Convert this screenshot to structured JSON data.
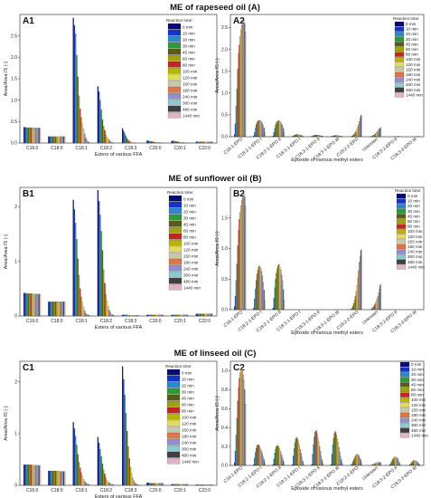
{
  "figure": {
    "section_titles": [
      "ME of rapeseed oil (A)",
      "ME of sunflower oil (B)",
      "ME of linseed oil (C)"
    ]
  },
  "legend": {
    "title": "Reaction time:",
    "colors": [
      "#0a0a73",
      "#1434c8",
      "#2f88c9",
      "#2f9a3a",
      "#5a5a1a",
      "#a0a014",
      "#c0281e",
      "#b8b400",
      "#e0dc60",
      "#c8c8aa",
      "#d9784a",
      "#9090c8",
      "#90c8d0",
      "#404040",
      "#e0b4c8",
      "#7830a8",
      "#c8a0ff",
      "#f0c8f0"
    ]
  },
  "chart_data": [
    {
      "id": "A1",
      "type": "bar",
      "panel_label": "A1",
      "xlabel": "Esters of various FFA",
      "ylabel": "Area/Area IS (-)",
      "ylim": [
        0,
        3.0
      ],
      "yticks": [
        0.0,
        0.5,
        1.0,
        1.5,
        2.0,
        2.5
      ],
      "categories": [
        "C16:0",
        "C18:0",
        "C18:1",
        "C18:2",
        "C18:3",
        "C20:0",
        "C20:1",
        "C22:0"
      ],
      "series_names": [
        "0 min",
        "10 min",
        "20 min",
        "30 min",
        "45 min",
        "60 min",
        "80 min",
        "100 min",
        "120 min",
        "150 min",
        "180 min",
        "240 min",
        "300 min",
        "480 min",
        "1440 min"
      ],
      "values": [
        [
          0.37,
          0.37,
          0.36,
          0.36,
          0.36,
          0.36,
          0.36,
          0.36,
          0.36,
          0.36,
          0.35,
          0.35,
          0.35,
          0.35,
          0.35
        ],
        [
          0.15,
          0.15,
          0.15,
          0.15,
          0.15,
          0.15,
          0.15,
          0.15,
          0.15,
          0.15,
          0.15,
          0.15,
          0.15,
          0.15,
          0.15
        ],
        [
          2.92,
          2.75,
          2.55,
          2.05,
          1.55,
          1.1,
          0.8,
          0.6,
          0.45,
          0.33,
          0.22,
          0.12,
          0.07,
          0.03,
          0.01
        ],
        [
          1.32,
          1.2,
          1.0,
          0.78,
          0.55,
          0.4,
          0.3,
          0.2,
          0.14,
          0.1,
          0.07,
          0.04,
          0.02,
          0.01,
          0.01
        ],
        [
          0.34,
          0.28,
          0.22,
          0.16,
          0.11,
          0.07,
          0.05,
          0.03,
          0.02,
          0.01,
          0.01,
          0.01,
          0.0,
          0.0,
          0.0
        ],
        [
          0.06,
          0.05,
          0.05,
          0.04,
          0.04,
          0.03,
          0.03,
          0.02,
          0.02,
          0.02,
          0.02,
          0.01,
          0.01,
          0.01,
          0.01
        ],
        [
          0.05,
          0.05,
          0.05,
          0.04,
          0.04,
          0.03,
          0.03,
          0.02,
          0.02,
          0.02,
          0.02,
          0.01,
          0.01,
          0.01,
          0.01
        ],
        [
          0.03,
          0.03,
          0.03,
          0.03,
          0.03,
          0.03,
          0.03,
          0.03,
          0.03,
          0.03,
          0.03,
          0.03,
          0.03,
          0.03,
          0.03
        ]
      ]
    },
    {
      "id": "A2",
      "type": "bar",
      "panel_label": "A2",
      "xlabel": "Epoxide of various methyl esters",
      "ylabel": "Area/Area IS (-)",
      "ylim": [
        0,
        2.8
      ],
      "yticks": [
        0.0,
        0.5,
        1.0,
        1.5,
        2.0,
        2.5
      ],
      "categories": [
        "C18:1-EPO",
        "C18:2-1-EPO I",
        "C18:2-1-EPO II",
        "C18:3-1-EPO I",
        "C18:3-1-EPO II",
        "C18:3-1-EPO III",
        "C18:2-2-EPO",
        "Unknown",
        "C18:3-2-EPO II",
        "C18:3-3-EPO III"
      ],
      "series_names": [
        "0 min",
        "10 min",
        "20 min",
        "30 min",
        "45 min",
        "60 min",
        "80 min",
        "100 min",
        "120 min",
        "150 min",
        "180 min",
        "240 min",
        "300 min",
        "480 min",
        "1440 min"
      ],
      "values": [
        [
          0.05,
          0.3,
          0.7,
          1.1,
          1.55,
          1.9,
          2.1,
          2.3,
          2.45,
          2.55,
          2.6,
          2.65,
          2.68,
          2.6,
          2.4
        ],
        [
          0.02,
          0.1,
          0.2,
          0.28,
          0.33,
          0.36,
          0.37,
          0.38,
          0.37,
          0.36,
          0.34,
          0.3,
          0.26,
          0.2,
          0.1
        ],
        [
          0.02,
          0.1,
          0.19,
          0.27,
          0.32,
          0.35,
          0.36,
          0.37,
          0.36,
          0.35,
          0.33,
          0.29,
          0.25,
          0.19,
          0.1
        ],
        [
          0.01,
          0.02,
          0.03,
          0.04,
          0.05,
          0.05,
          0.05,
          0.05,
          0.05,
          0.04,
          0.04,
          0.03,
          0.03,
          0.02,
          0.01
        ],
        [
          0.01,
          0.02,
          0.03,
          0.03,
          0.04,
          0.04,
          0.04,
          0.04,
          0.04,
          0.04,
          0.03,
          0.03,
          0.02,
          0.02,
          0.01
        ],
        [
          0.01,
          0.01,
          0.02,
          0.02,
          0.03,
          0.03,
          0.03,
          0.03,
          0.03,
          0.03,
          0.02,
          0.02,
          0.02,
          0.01,
          0.01
        ],
        [
          0.0,
          0.01,
          0.02,
          0.03,
          0.05,
          0.07,
          0.1,
          0.13,
          0.17,
          0.22,
          0.28,
          0.35,
          0.42,
          0.48,
          0.5
        ],
        [
          0.0,
          0.0,
          0.01,
          0.02,
          0.03,
          0.04,
          0.05,
          0.07,
          0.09,
          0.11,
          0.13,
          0.16,
          0.18,
          0.2,
          0.21
        ],
        [
          0.0,
          0.0,
          0.0,
          0.0,
          0.0,
          0.0,
          0.0,
          0.01,
          0.01,
          0.01,
          0.01,
          0.01,
          0.01,
          0.01,
          0.01
        ],
        [
          0.0,
          0.0,
          0.0,
          0.0,
          0.0,
          0.0,
          0.0,
          0.0,
          0.0,
          0.0,
          0.01,
          0.01,
          0.01,
          0.01,
          0.01
        ]
      ]
    },
    {
      "id": "B1",
      "type": "bar",
      "panel_label": "B1",
      "xlabel": "Esters of various FFA",
      "ylabel": "Area/Area IS (-)",
      "ylim": [
        0,
        2.35
      ],
      "yticks": [
        0,
        1,
        2
      ],
      "categories": [
        "C16:0",
        "C18:0",
        "C18:1",
        "C18:2",
        "C18:3",
        "C20:0",
        "C20:1",
        "C22:0"
      ],
      "series_names": [
        "0 min",
        "10 min",
        "20 min",
        "30 min",
        "45 min",
        "60 min",
        "80 min",
        "100 min",
        "120 min",
        "150 min",
        "180 min",
        "240 min",
        "300 min",
        "480 min",
        "1440 min"
      ],
      "values": [
        [
          0.42,
          0.42,
          0.41,
          0.41,
          0.41,
          0.41,
          0.41,
          0.41,
          0.4,
          0.4,
          0.4,
          0.4,
          0.4,
          0.4,
          0.4
        ],
        [
          0.26,
          0.26,
          0.26,
          0.26,
          0.26,
          0.26,
          0.26,
          0.26,
          0.26,
          0.26,
          0.26,
          0.26,
          0.26,
          0.26,
          0.26
        ],
        [
          2.12,
          1.95,
          1.7,
          1.4,
          1.05,
          0.75,
          0.5,
          0.35,
          0.25,
          0.17,
          0.1,
          0.05,
          0.03,
          0.02,
          0.01
        ],
        [
          2.3,
          2.1,
          1.85,
          1.55,
          1.2,
          0.85,
          0.6,
          0.4,
          0.28,
          0.18,
          0.11,
          0.06,
          0.03,
          0.02,
          0.01
        ],
        [
          0.02,
          0.02,
          0.02,
          0.02,
          0.02,
          0.01,
          0.01,
          0.01,
          0.01,
          0.01,
          0.01,
          0.01,
          0.01,
          0.01,
          0.01
        ],
        [
          0.02,
          0.02,
          0.02,
          0.02,
          0.02,
          0.02,
          0.02,
          0.02,
          0.02,
          0.02,
          0.02,
          0.02,
          0.02,
          0.02,
          0.02
        ],
        [
          0.02,
          0.02,
          0.02,
          0.02,
          0.02,
          0.02,
          0.02,
          0.02,
          0.02,
          0.02,
          0.02,
          0.02,
          0.02,
          0.02,
          0.02
        ],
        [
          0.04,
          0.04,
          0.04,
          0.04,
          0.04,
          0.04,
          0.04,
          0.04,
          0.04,
          0.04,
          0.04,
          0.04,
          0.04,
          0.04,
          0.04
        ]
      ]
    },
    {
      "id": "B2",
      "type": "bar",
      "panel_label": "B2",
      "xlabel": "Epoxide of various methyl esters",
      "ylabel": "Area/Area IS (-)",
      "ylim": [
        0,
        2.0
      ],
      "yticks": [
        0.0,
        0.5,
        1.0,
        1.5
      ],
      "categories": [
        "C18:1-EPO",
        "C18:2-1-EPO I",
        "C18:2-1-EPO II",
        "C18:3-1-EPO I",
        "C18:3-1-EPO II",
        "C18:3-1-EPO III",
        "C18:2-2-EPO",
        "Unknown",
        "C18:3-2-EPO II",
        "C18:3-3-EPO III"
      ],
      "series_names": [
        "0 min",
        "10 min",
        "20 min",
        "30 min",
        "45 min",
        "60 min",
        "80 min",
        "100 min",
        "120 min",
        "150 min",
        "180 min",
        "240 min",
        "300 min",
        "480 min",
        "1440 min"
      ],
      "values": [
        [
          0.05,
          0.22,
          0.48,
          0.75,
          1.05,
          1.3,
          1.48,
          1.6,
          1.7,
          1.78,
          1.83,
          1.88,
          1.9,
          1.85,
          1.7
        ],
        [
          0.03,
          0.18,
          0.34,
          0.48,
          0.58,
          0.65,
          0.7,
          0.72,
          0.71,
          0.68,
          0.63,
          0.55,
          0.45,
          0.32,
          0.15
        ],
        [
          0.03,
          0.19,
          0.36,
          0.5,
          0.6,
          0.67,
          0.72,
          0.74,
          0.73,
          0.7,
          0.65,
          0.57,
          0.47,
          0.33,
          0.16
        ],
        [
          0.0,
          0.0,
          0.0,
          0.0,
          0.0,
          0.0,
          0.0,
          0.0,
          0.0,
          0.0,
          0.0,
          0.0,
          0.0,
          0.0,
          0.0
        ],
        [
          0.0,
          0.0,
          0.0,
          0.0,
          0.0,
          0.0,
          0.0,
          0.0,
          0.0,
          0.0,
          0.0,
          0.0,
          0.0,
          0.0,
          0.0
        ],
        [
          0.0,
          0.0,
          0.0,
          0.0,
          0.0,
          0.0,
          0.0,
          0.0,
          0.0,
          0.0,
          0.0,
          0.0,
          0.0,
          0.0,
          0.0
        ],
        [
          0.0,
          0.01,
          0.03,
          0.06,
          0.1,
          0.15,
          0.22,
          0.3,
          0.4,
          0.52,
          0.64,
          0.78,
          0.88,
          0.97,
          0.98
        ],
        [
          0.0,
          0.0,
          0.01,
          0.02,
          0.04,
          0.06,
          0.08,
          0.11,
          0.14,
          0.18,
          0.22,
          0.28,
          0.34,
          0.4,
          0.42
        ],
        [
          0.0,
          0.0,
          0.0,
          0.0,
          0.0,
          0.0,
          0.0,
          0.0,
          0.0,
          0.0,
          0.0,
          0.0,
          0.0,
          0.0,
          0.0
        ],
        [
          0.0,
          0.0,
          0.0,
          0.0,
          0.0,
          0.0,
          0.0,
          0.0,
          0.0,
          0.0,
          0.0,
          0.0,
          0.0,
          0.0,
          0.0
        ]
      ]
    },
    {
      "id": "C1",
      "type": "bar",
      "panel_label": "C1",
      "xlabel": "Esters of various FFA",
      "ylabel": "Area/Area IS (-)",
      "ylim": [
        0,
        2.4
      ],
      "yticks": [
        0,
        1,
        2
      ],
      "categories": [
        "C16:0",
        "C18:0",
        "C18:1",
        "C18:2",
        "C18:3",
        "C20:0",
        "C20:1",
        "C22:0"
      ],
      "series_names": [
        "0 min",
        "10 min",
        "20 min",
        "30 min",
        "45 min",
        "60 min",
        "80 min",
        "100 min",
        "120 min",
        "150 min",
        "180 min",
        "240 min",
        "300 min",
        "480 min",
        "1440 min"
      ],
      "values": [
        [
          0.4,
          0.4,
          0.4,
          0.4,
          0.4,
          0.4,
          0.4,
          0.39,
          0.39,
          0.39,
          0.39,
          0.39,
          0.39,
          0.38,
          0.38
        ],
        [
          0.28,
          0.28,
          0.28,
          0.28,
          0.28,
          0.28,
          0.28,
          0.28,
          0.28,
          0.28,
          0.27,
          0.27,
          0.27,
          0.27,
          0.27
        ],
        [
          1.22,
          1.1,
          0.95,
          0.78,
          0.6,
          0.45,
          0.34,
          0.25,
          0.18,
          0.12,
          0.08,
          0.05,
          0.03,
          0.02,
          0.01
        ],
        [
          0.93,
          0.82,
          0.7,
          0.56,
          0.42,
          0.3,
          0.22,
          0.15,
          0.1,
          0.07,
          0.05,
          0.03,
          0.02,
          0.01,
          0.01
        ],
        [
          2.3,
          2.05,
          1.75,
          1.4,
          1.05,
          0.75,
          0.52,
          0.35,
          0.23,
          0.15,
          0.09,
          0.05,
          0.03,
          0.01,
          0.01
        ],
        [
          0.05,
          0.05,
          0.05,
          0.04,
          0.04,
          0.04,
          0.04,
          0.04,
          0.04,
          0.04,
          0.04,
          0.04,
          0.04,
          0.04,
          0.04
        ],
        [
          0.02,
          0.02,
          0.02,
          0.02,
          0.02,
          0.02,
          0.02,
          0.02,
          0.02,
          0.02,
          0.02,
          0.02,
          0.02,
          0.02,
          0.02
        ],
        [
          0.01,
          0.01,
          0.01,
          0.01,
          0.01,
          0.01,
          0.01,
          0.01,
          0.01,
          0.01,
          0.01,
          0.01,
          0.01,
          0.01,
          0.01
        ]
      ]
    },
    {
      "id": "C2",
      "type": "bar",
      "panel_label": "C2",
      "xlabel": "Epoxide of various methyl esters",
      "ylabel": "Area/Area IS (-)",
      "ylim": [
        0,
        1.1
      ],
      "yticks": [
        0.0,
        0.2,
        0.4,
        0.6,
        0.8,
        1.0
      ],
      "categories": [
        "C18:1-EPO",
        "C18:2-1-EPO I",
        "C18:2-1-EPO II",
        "C18:3-1-EPO I",
        "C18:3-1-EPO II",
        "C18:3-1-EPO III",
        "C18:2-2-EPO",
        "Unknown",
        "C18:3-2-EPO II",
        "C18:3-3-EPO III"
      ],
      "series_names": [
        "0 min",
        "10 min",
        "20 min",
        "30 min",
        "45 min",
        "60 min",
        "80 min",
        "100 min",
        "120 min",
        "150 min",
        "180 min",
        "240 min",
        "300 min",
        "480 min",
        "1440 min"
      ],
      "values": [
        [
          0.03,
          0.15,
          0.32,
          0.5,
          0.68,
          0.82,
          0.92,
          0.98,
          1.02,
          1.02,
          1.0,
          0.96,
          0.9,
          0.8,
          0.65
        ],
        [
          0.01,
          0.08,
          0.14,
          0.18,
          0.21,
          0.22,
          0.22,
          0.21,
          0.19,
          0.17,
          0.15,
          0.12,
          0.09,
          0.06,
          0.03
        ],
        [
          0.01,
          0.07,
          0.13,
          0.17,
          0.2,
          0.21,
          0.21,
          0.2,
          0.18,
          0.16,
          0.14,
          0.11,
          0.08,
          0.05,
          0.02
        ],
        [
          0.01,
          0.1,
          0.18,
          0.24,
          0.28,
          0.3,
          0.29,
          0.27,
          0.24,
          0.21,
          0.17,
          0.13,
          0.09,
          0.05,
          0.02
        ],
        [
          0.01,
          0.12,
          0.22,
          0.3,
          0.35,
          0.37,
          0.36,
          0.33,
          0.29,
          0.25,
          0.2,
          0.15,
          0.1,
          0.06,
          0.02
        ],
        [
          0.01,
          0.12,
          0.22,
          0.29,
          0.34,
          0.36,
          0.35,
          0.32,
          0.28,
          0.24,
          0.19,
          0.14,
          0.1,
          0.06,
          0.02
        ],
        [
          0.0,
          0.01,
          0.02,
          0.04,
          0.06,
          0.08,
          0.1,
          0.11,
          0.12,
          0.12,
          0.11,
          0.1,
          0.08,
          0.06,
          0.03
        ],
        [
          0.0,
          0.0,
          0.0,
          0.01,
          0.01,
          0.01,
          0.02,
          0.02,
          0.02,
          0.03,
          0.03,
          0.03,
          0.03,
          0.03,
          0.03
        ],
        [
          0.0,
          0.01,
          0.02,
          0.04,
          0.06,
          0.07,
          0.08,
          0.09,
          0.09,
          0.09,
          0.08,
          0.07,
          0.05,
          0.03,
          0.01
        ],
        [
          0.0,
          0.0,
          0.01,
          0.02,
          0.03,
          0.04,
          0.05,
          0.05,
          0.05,
          0.05,
          0.04,
          0.04,
          0.03,
          0.02,
          0.01
        ]
      ]
    }
  ]
}
